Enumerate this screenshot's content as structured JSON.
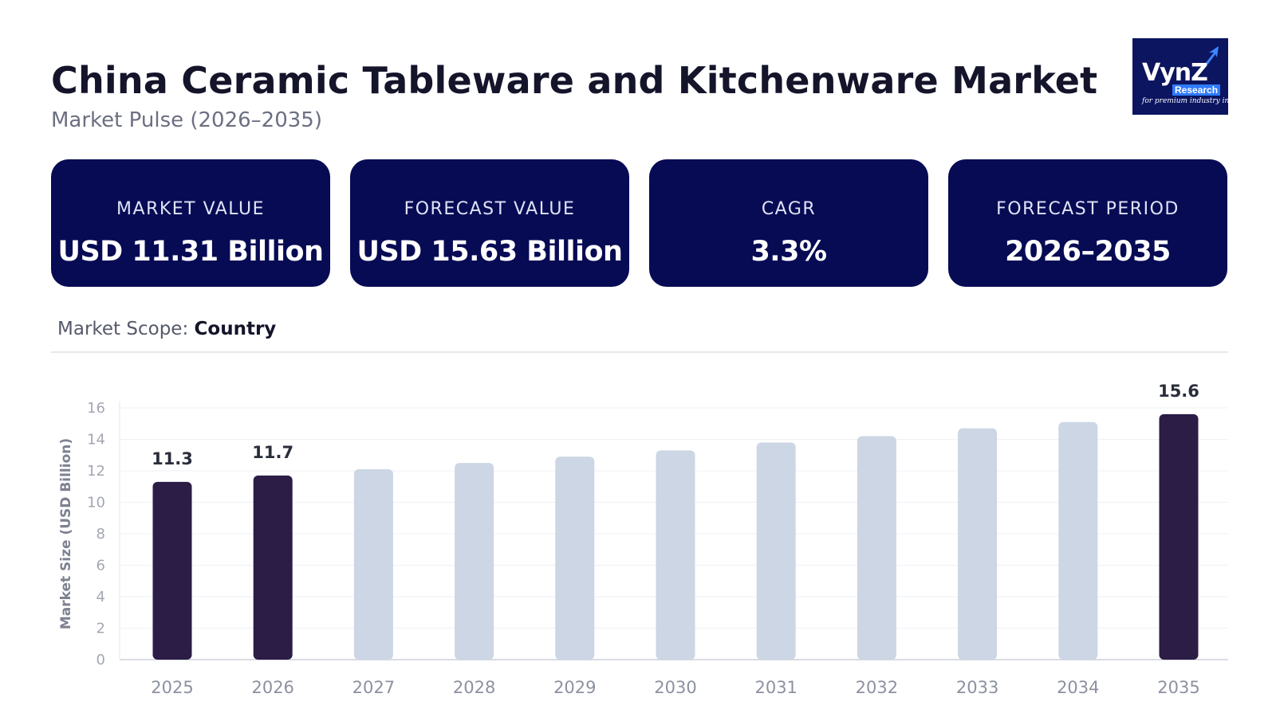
{
  "header": {
    "title": "China Ceramic Tableware and Kitchenware Market",
    "subtitle": "Market Pulse (2026–2035)"
  },
  "logo": {
    "brand": "VynZ",
    "sub": "Research",
    "tagline": "for premium industry insights"
  },
  "cards": [
    {
      "label": "MARKET VALUE",
      "value": "USD 11.31 Billion"
    },
    {
      "label": "FORECAST VALUE",
      "value": "USD 15.63 Billion"
    },
    {
      "label": "CAGR",
      "value": "3.3%"
    },
    {
      "label": "FORECAST PERIOD",
      "value": "2026–2035"
    }
  ],
  "scope": {
    "label": "Market Scope:",
    "value": "Country"
  },
  "colors": {
    "card_bg": "#070b54",
    "bar_highlight": "#2b1d46",
    "bar_muted": "#ccd6e4"
  },
  "chart_data": {
    "type": "bar",
    "categories": [
      "2025",
      "2026",
      "2027",
      "2028",
      "2029",
      "2030",
      "2031",
      "2032",
      "2033",
      "2034",
      "2035"
    ],
    "values": [
      11.3,
      11.7,
      12.1,
      12.5,
      12.9,
      13.3,
      13.8,
      14.2,
      14.7,
      15.1,
      15.6
    ],
    "highlighted": [
      true,
      true,
      false,
      false,
      false,
      false,
      false,
      false,
      false,
      false,
      true
    ],
    "data_labels": [
      "11.3",
      "11.7",
      "",
      "",
      "",
      "",
      "",
      "",
      "",
      "",
      "15.6"
    ],
    "ylabel": "Market Size (USD Billion)",
    "ylim": [
      0,
      16
    ],
    "yticks": [
      0,
      2,
      4,
      6,
      8,
      10,
      12,
      14,
      16
    ],
    "grid": true
  }
}
